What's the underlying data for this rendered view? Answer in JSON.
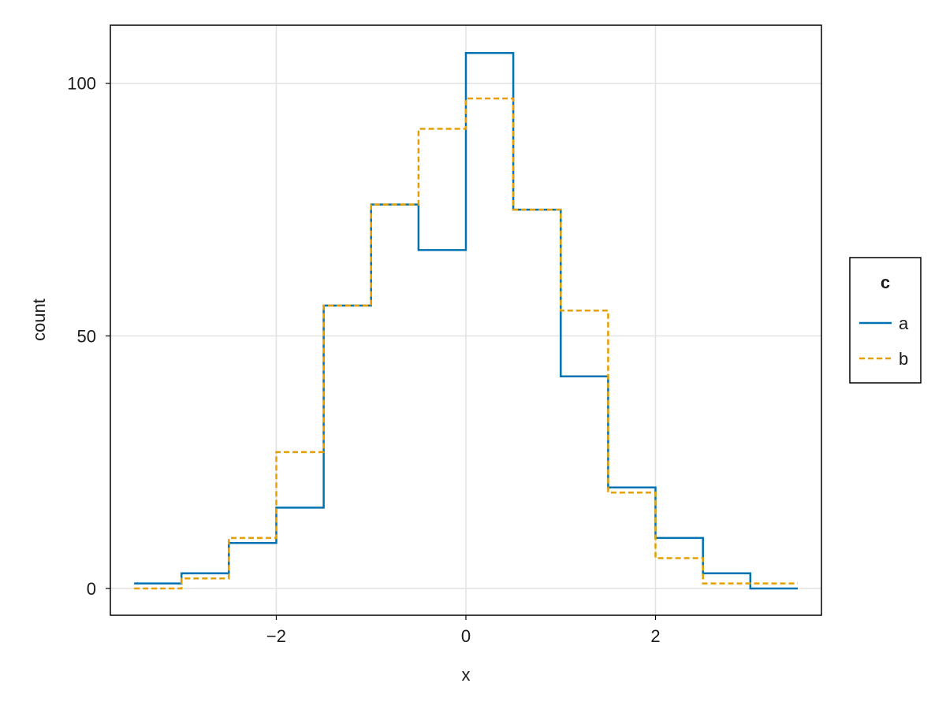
{
  "chart_data": {
    "type": "histogram-step",
    "xlabel": "x",
    "ylabel": "count",
    "xlim": [
      -3.75,
      3.75
    ],
    "ylim": [
      -5.3,
      111.5
    ],
    "x_ticks": [
      -2,
      0,
      2
    ],
    "x_tick_labels": [
      "−2",
      "0",
      "2"
    ],
    "y_ticks": [
      0,
      50,
      100
    ],
    "y_tick_labels": [
      "0",
      "50",
      "100"
    ],
    "grid": true,
    "bin_edges": [
      -3.5,
      -3.0,
      -2.5,
      -2.0,
      -1.5,
      -1.0,
      -0.5,
      0.0,
      0.5,
      1.0,
      1.5,
      2.0,
      2.5,
      3.0,
      3.5
    ],
    "series": [
      {
        "name": "a",
        "color": "#0072b2",
        "line_style": "solid",
        "values": [
          1,
          3,
          9,
          16,
          56,
          76,
          67,
          106,
          75,
          42,
          20,
          10,
          3,
          0
        ]
      },
      {
        "name": "b",
        "color": "#e69f00",
        "line_style": "dashed",
        "values": [
          0,
          2,
          10,
          27,
          56,
          76,
          91,
          97,
          75,
          55,
          19,
          6,
          1,
          1
        ]
      }
    ],
    "legend": {
      "title": "c",
      "placement": "right"
    }
  }
}
